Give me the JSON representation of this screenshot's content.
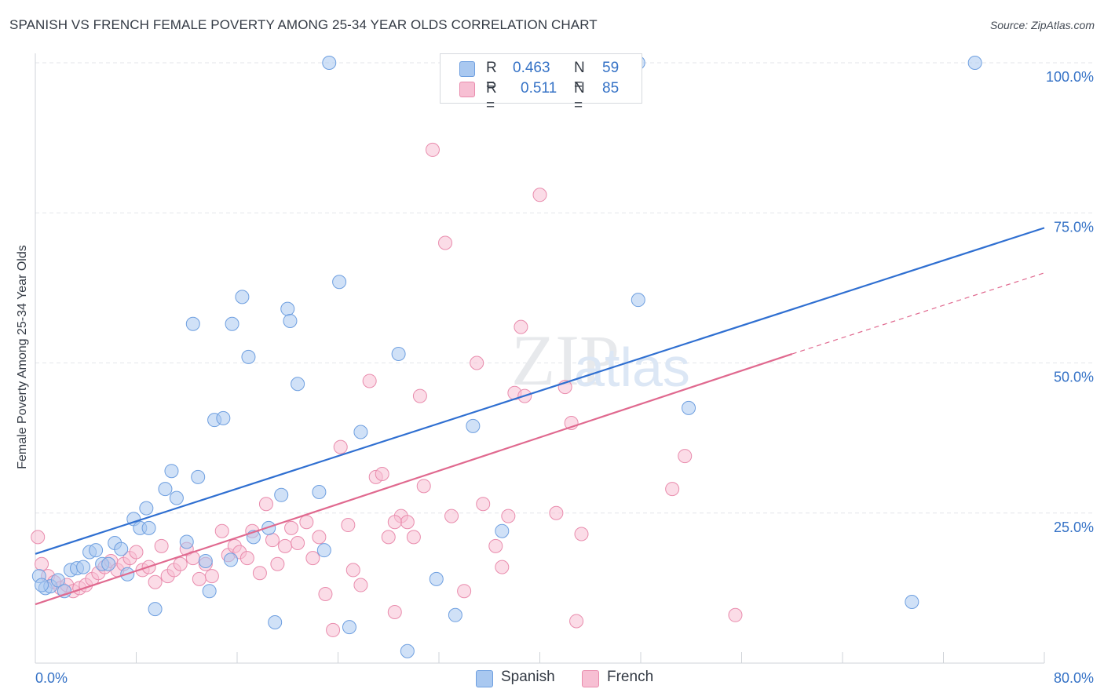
{
  "title": "SPANISH VS FRENCH FEMALE POVERTY AMONG 25-34 YEAR OLDS CORRELATION CHART",
  "source": "Source: ZipAtlas.com",
  "colors": {
    "spanish": "#a9c8f0",
    "spanish_edge": "#6e9fe0",
    "spanish_line": "#2f6fd1",
    "french": "#f7bfd3",
    "french_edge": "#e98cad",
    "french_line": "#e0698f",
    "axis_text": "#3572c6",
    "grid": "#e3e6ea"
  },
  "legend": {
    "spanish": {
      "r_label": "R =",
      "r_value": "0.463",
      "n_label": "N =",
      "n_value": "59"
    },
    "french": {
      "r_label": "R =",
      "r_value": "0.511",
      "n_label": "N =",
      "n_value": "85"
    }
  },
  "bottom_legend": {
    "spanish": "Spanish",
    "french": "French"
  },
  "chart_data": {
    "type": "scatter",
    "title": "SPANISH VS FRENCH FEMALE POVERTY AMONG 25-34 YEAR OLDS CORRELATION CHART",
    "xlabel": "",
    "ylabel": "Female Poverty Among 25-34 Year Olds",
    "xlim": [
      0,
      80
    ],
    "ylim": [
      0,
      100
    ],
    "x_tick_labels": [
      "0.0%",
      "80.0%"
    ],
    "y_tick_labels": [
      "25.0%",
      "50.0%",
      "75.0%",
      "100.0%"
    ],
    "y_ticks": [
      25,
      50,
      75,
      100
    ],
    "grid": true,
    "legend_position": "top-center",
    "watermark": "ZIPatlas",
    "series": [
      {
        "name": "Spanish",
        "r": 0.463,
        "n": 59,
        "trend": {
          "x": [
            0,
            80
          ],
          "y": [
            18.2,
            72.5
          ],
          "style": "solid"
        },
        "points": [
          [
            0.3,
            14.5
          ],
          [
            0.8,
            12.5
          ],
          [
            1.2,
            12.8
          ],
          [
            1.8,
            13.8
          ],
          [
            2.3,
            12.0
          ],
          [
            2.8,
            15.5
          ],
          [
            3.3,
            15.8
          ],
          [
            3.8,
            16.0
          ],
          [
            4.3,
            18.5
          ],
          [
            4.8,
            18.8
          ],
          [
            5.3,
            16.5
          ],
          [
            5.8,
            16.5
          ],
          [
            6.3,
            20.0
          ],
          [
            6.8,
            19.0
          ],
          [
            7.3,
            14.8
          ],
          [
            7.8,
            24.0
          ],
          [
            8.3,
            22.5
          ],
          [
            8.8,
            25.8
          ],
          [
            9.0,
            22.5
          ],
          [
            9.5,
            9.0
          ],
          [
            10.3,
            29.0
          ],
          [
            10.8,
            32.0
          ],
          [
            11.2,
            27.5
          ],
          [
            12.0,
            20.2
          ],
          [
            12.5,
            56.5
          ],
          [
            12.9,
            31.0
          ],
          [
            13.5,
            17.0
          ],
          [
            13.8,
            12.0
          ],
          [
            14.2,
            40.5
          ],
          [
            14.9,
            40.8
          ],
          [
            15.5,
            17.2
          ],
          [
            15.6,
            56.5
          ],
          [
            16.4,
            61.0
          ],
          [
            16.9,
            51.0
          ],
          [
            17.3,
            21.0
          ],
          [
            18.5,
            22.5
          ],
          [
            19.0,
            6.8
          ],
          [
            19.5,
            28.0
          ],
          [
            20.0,
            59.0
          ],
          [
            20.2,
            57.0
          ],
          [
            20.8,
            46.5
          ],
          [
            22.5,
            28.5
          ],
          [
            22.9,
            18.8
          ],
          [
            23.3,
            100.0
          ],
          [
            24.1,
            63.5
          ],
          [
            24.9,
            6.0
          ],
          [
            25.8,
            38.5
          ],
          [
            28.8,
            51.5
          ],
          [
            29.5,
            2.0
          ],
          [
            31.8,
            14.0
          ],
          [
            33.3,
            8.0
          ],
          [
            34.7,
            39.5
          ],
          [
            37.0,
            22.0
          ],
          [
            47.8,
            100.0
          ],
          [
            47.8,
            60.5
          ],
          [
            51.8,
            42.5
          ],
          [
            69.5,
            10.2
          ],
          [
            74.5,
            100.0
          ],
          [
            0.5,
            13.0
          ]
        ]
      },
      {
        "name": "French",
        "r": 0.511,
        "n": 85,
        "trend": {
          "x": [
            0,
            60
          ],
          "y": [
            9.8,
            51.5
          ],
          "x_dashed_end": 80,
          "y_dashed_end": 65.0,
          "style": "solid_then_dashed"
        },
        "points": [
          [
            0.2,
            21.0
          ],
          [
            0.5,
            16.5
          ],
          [
            1.0,
            14.5
          ],
          [
            1.5,
            13.5
          ],
          [
            2.0,
            12.5
          ],
          [
            2.5,
            13.0
          ],
          [
            3.0,
            12.0
          ],
          [
            3.5,
            12.5
          ],
          [
            4.0,
            13.0
          ],
          [
            4.5,
            14.0
          ],
          [
            5.0,
            15.0
          ],
          [
            5.5,
            16.0
          ],
          [
            6.0,
            17.0
          ],
          [
            6.5,
            15.5
          ],
          [
            7.0,
            16.5
          ],
          [
            7.5,
            17.5
          ],
          [
            8.0,
            18.5
          ],
          [
            8.5,
            15.5
          ],
          [
            9.0,
            16.0
          ],
          [
            9.5,
            13.5
          ],
          [
            10.0,
            19.5
          ],
          [
            10.5,
            14.5
          ],
          [
            11.0,
            15.5
          ],
          [
            11.5,
            16.5
          ],
          [
            12.0,
            19.0
          ],
          [
            12.5,
            17.5
          ],
          [
            13.0,
            14.0
          ],
          [
            13.5,
            16.5
          ],
          [
            14.0,
            14.5
          ],
          [
            14.8,
            22.0
          ],
          [
            15.3,
            18.0
          ],
          [
            15.8,
            19.5
          ],
          [
            16.2,
            18.5
          ],
          [
            16.8,
            17.5
          ],
          [
            17.2,
            22.0
          ],
          [
            17.8,
            15.0
          ],
          [
            18.3,
            26.5
          ],
          [
            18.8,
            20.5
          ],
          [
            19.2,
            16.5
          ],
          [
            19.8,
            19.5
          ],
          [
            20.3,
            22.5
          ],
          [
            20.8,
            20.0
          ],
          [
            21.5,
            23.5
          ],
          [
            22.0,
            17.5
          ],
          [
            22.5,
            21.0
          ],
          [
            23.0,
            11.5
          ],
          [
            23.6,
            5.5
          ],
          [
            24.2,
            36.0
          ],
          [
            24.8,
            23.0
          ],
          [
            25.2,
            15.5
          ],
          [
            25.8,
            13.0
          ],
          [
            26.5,
            47.0
          ],
          [
            27.0,
            31.0
          ],
          [
            27.5,
            31.5
          ],
          [
            28.0,
            21.0
          ],
          [
            28.5,
            8.5
          ],
          [
            29.0,
            24.5
          ],
          [
            29.5,
            23.5
          ],
          [
            30.0,
            21.0
          ],
          [
            30.5,
            44.5
          ],
          [
            30.8,
            29.5
          ],
          [
            31.5,
            85.5
          ],
          [
            32.5,
            70.0
          ],
          [
            33.0,
            24.5
          ],
          [
            34.0,
            12.0
          ],
          [
            35.0,
            50.0
          ],
          [
            35.5,
            26.5
          ],
          [
            36.5,
            19.5
          ],
          [
            37.0,
            16.0
          ],
          [
            37.5,
            24.5
          ],
          [
            38.0,
            45.0
          ],
          [
            38.5,
            56.0
          ],
          [
            38.8,
            44.5
          ],
          [
            40.0,
            78.0
          ],
          [
            41.3,
            25.0
          ],
          [
            42.0,
            46.0
          ],
          [
            42.5,
            40.0
          ],
          [
            42.9,
            7.0
          ],
          [
            43.3,
            21.5
          ],
          [
            46.0,
            100.0
          ],
          [
            50.5,
            29.0
          ],
          [
            51.5,
            34.5
          ],
          [
            55.5,
            8.0
          ],
          [
            46.5,
            100.0
          ],
          [
            28.5,
            23.5
          ]
        ]
      }
    ]
  }
}
